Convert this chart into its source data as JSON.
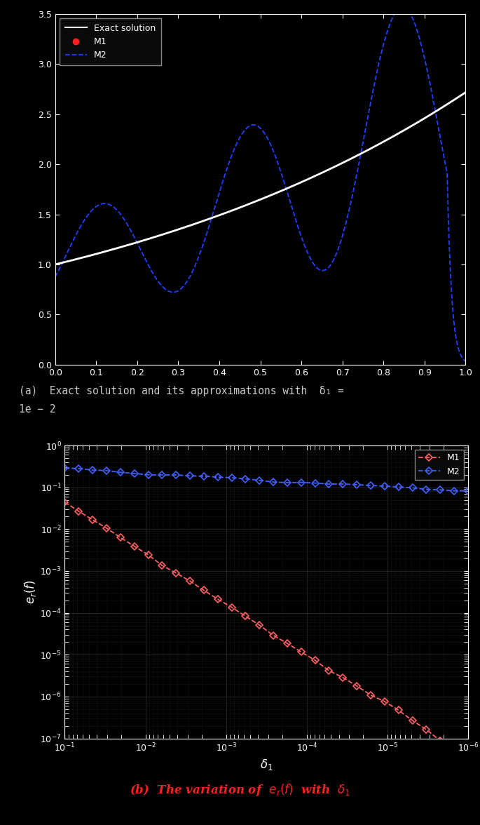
{
  "bg_color": "#000000",
  "text_color": "#ffffff",
  "plot1": {
    "xlim": [
      0,
      1
    ],
    "ylim": [
      0,
      3.5
    ],
    "yticks": [
      0.0,
      0.5,
      1.0,
      1.5,
      2.0,
      2.5,
      3.0,
      3.5
    ],
    "xticks": [
      0.0,
      0.1,
      0.2,
      0.3,
      0.4,
      0.5,
      0.6,
      0.7,
      0.8,
      0.9,
      1.0
    ],
    "exact_color": "#ffffff",
    "m1_color": "#ff2020",
    "m2_color": "#2040ff",
    "legend_labels": [
      "Exact solution",
      "M1",
      "M2"
    ]
  },
  "plot2": {
    "m1_color": "#ff6060",
    "m2_color": "#4060ff",
    "xlabel": "$\\delta_1$",
    "ylabel": "$e_r(f)$",
    "legend_labels": [
      "M1",
      "M2"
    ]
  },
  "caption_a_line1": "(a)  Exact solution and its approximations with  δ₁ =",
  "caption_a_line2": "1e − 2",
  "caption_b": "(b)  The variation of  $e_r(f)$  with  $\\delta_1$",
  "caption_color_a": "#c8c8c8",
  "caption_color_b": "#ff2020"
}
